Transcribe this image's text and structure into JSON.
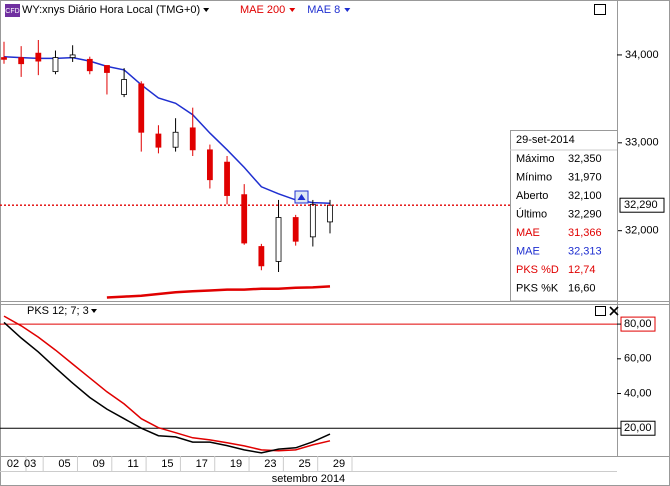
{
  "chart_data": [
    {
      "type": "candlestick",
      "badge": "CFD",
      "title": "WY:xnys Diário Hora Local (TMG+0)",
      "xlabel": "setembro 2014",
      "categories": [
        "02",
        "03",
        null,
        "05",
        null,
        "09",
        null,
        "11",
        null,
        "15",
        null,
        "17",
        null,
        "19",
        null,
        "23",
        null,
        "25",
        null,
        "29"
      ],
      "open": [
        33.97,
        33.97,
        34.02,
        33.81,
        33.97,
        33.95,
        33.88,
        33.55,
        33.67,
        33.1,
        32.95,
        33.17,
        32.92,
        32.78,
        32.41,
        31.82,
        31.65,
        32.15,
        31.93,
        32.1
      ],
      "high": [
        34.15,
        34.1,
        34.17,
        34.05,
        34.11,
        33.98,
        33.88,
        33.85,
        33.7,
        33.2,
        33.28,
        33.4,
        32.98,
        32.85,
        32.53,
        31.85,
        32.35,
        32.18,
        32.35,
        32.35
      ],
      "low": [
        33.9,
        33.75,
        33.77,
        33.78,
        33.92,
        33.78,
        33.55,
        33.52,
        32.9,
        32.88,
        32.9,
        32.85,
        32.48,
        32.3,
        31.84,
        31.55,
        31.53,
        31.83,
        31.82,
        31.97
      ],
      "close": [
        33.95,
        33.9,
        33.93,
        33.97,
        34.0,
        33.82,
        33.8,
        33.72,
        33.12,
        32.95,
        33.12,
        32.92,
        32.58,
        32.4,
        31.86,
        31.6,
        32.15,
        31.88,
        32.3,
        32.29
      ],
      "up_color": "#ffffff",
      "down_color": "#e00000",
      "series": [
        {
          "name": "MAE 200",
          "color": "#e00000",
          "values": [
            null,
            null,
            null,
            null,
            null,
            null,
            31.24,
            31.25,
            31.26,
            31.28,
            31.3,
            31.31,
            31.32,
            31.33,
            31.33,
            31.34,
            31.34,
            31.35,
            31.355,
            31.366
          ]
        },
        {
          "name": "MAE 8",
          "color": "#1f2fd0",
          "values": [
            33.98,
            33.97,
            33.96,
            33.96,
            33.97,
            33.93,
            33.87,
            33.83,
            33.66,
            33.51,
            33.45,
            33.32,
            33.11,
            32.92,
            32.72,
            32.5,
            32.42,
            32.35,
            32.32,
            32.313
          ]
        }
      ],
      "ylim": [
        31.2,
        34.625
      ],
      "yticks": [
        {
          "value": 34,
          "label": "34,000"
        },
        {
          "value": 33,
          "label": "33,000"
        },
        {
          "value": 32,
          "label": "32,000"
        }
      ],
      "last_price": {
        "value": 32.29,
        "label": "32,290",
        "color": "#e00000"
      },
      "info_box": {
        "title": "29-set-2014",
        "rows": [
          {
            "label": "Máximo",
            "value": "32,350",
            "color": "#000000"
          },
          {
            "label": "Mínimo",
            "value": "31,970",
            "color": "#000000"
          },
          {
            "label": "Aberto",
            "value": "32,100",
            "color": "#000000"
          },
          {
            "label": "Último",
            "value": "32,290",
            "color": "#000000"
          },
          {
            "label": "MAE",
            "value": "31,366",
            "color": "#e00000"
          },
          {
            "label": "MAE",
            "value": "32,313",
            "color": "#1f2fd0"
          },
          {
            "label": "PKS %D",
            "value": "12,74",
            "color": "#e00000"
          },
          {
            "label": "PKS %K",
            "value": "16,60",
            "color": "#000000"
          }
        ]
      }
    },
    {
      "type": "line",
      "title": "PKS 12; 7; 3",
      "series": [
        {
          "color": "#e00000",
          "values": [
            84.6,
            79,
            72.5,
            65,
            57,
            49,
            41,
            34,
            25.5,
            20.3,
            17.4,
            14.5,
            13.3,
            11.6,
            9.8,
            7.5,
            7,
            7.5,
            10.4,
            12.74
          ]
        },
        {
          "color": "#000000",
          "values": [
            81,
            72,
            64,
            54.8,
            46,
            37.7,
            31,
            25.5,
            20,
            15.7,
            15,
            12,
            12,
            10,
            7.5,
            5.8,
            8,
            8.7,
            12.2,
            16.6
          ]
        }
      ],
      "ylim": [
        4,
        91
      ],
      "yticks": [
        {
          "value": 80,
          "label": "80,00"
        },
        {
          "value": 60,
          "label": "60,00"
        },
        {
          "value": 40,
          "label": "40,00"
        },
        {
          "value": 20,
          "label": "20,00"
        }
      ],
      "levels": [
        80,
        20
      ],
      "level_colors": [
        "#e00000",
        "#000000"
      ]
    }
  ]
}
